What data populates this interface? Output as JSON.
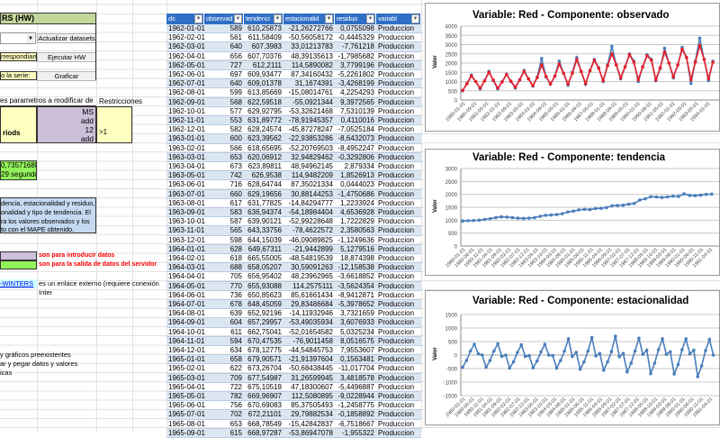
{
  "left_panel": {
    "header": "RS (HW)",
    "update_button": "Actualizar datasets",
    "cell_corresponding": "rrespondiant",
    "run_button": "Ejecutar HW",
    "cell_series": "o la serie:",
    "plot_button": "Graficar",
    "params_label": "es parametros a modificar de",
    "restrictions_label": "Restricciones",
    "param_name": "riods",
    "param_values": [
      "MS",
      "add",
      "12",
      "add"
    ],
    "restriction_value": ">1",
    "output_value": "0,735716886",
    "output_time": "29 segundos",
    "info_lines": [
      "dencia, estacionalidad y residuo,",
      "onalidad y tipo de tendencia. El",
      "ra los valores observados y los",
      "to con el MAPE obtenido."
    ],
    "legend_input": "son para introducir datos",
    "legend_output": "son para la salida de datos del servidor",
    "link_text": "-WINTERS",
    "link_note": "es un enlace externo (requiere conexión Inter",
    "notes": [
      "y gráficos preexistentes",
      "ar y pegar datos y valores",
      "icas"
    ],
    "colors": {
      "input": "#ccc0da",
      "output": "#92f25a",
      "info": "#c5d9f1",
      "header": "#c4d79b",
      "legend_text": "#ff0000"
    }
  },
  "table": {
    "columns": [
      "ds",
      "observad",
      "tendenci",
      "estacionalid",
      "residuo",
      "variabl"
    ],
    "rows": [
      [
        "1962-01-01",
        "589",
        "610,25873",
        "-21,26272766",
        "0,0755098",
        "Produccion"
      ],
      [
        "1962-02-01",
        "561",
        "611,58409",
        "-50,56058172",
        "-0,4445329",
        "Produccion"
      ],
      [
        "1962-03-01",
        "640",
        "607,3983",
        "33,01213783",
        "-7,761218",
        "Produccion"
      ],
      [
        "1962-04-01",
        "656",
        "607,70376",
        "48,39135613",
        "-1,7985682",
        "Produccion"
      ],
      [
        "1962-05-01",
        "727",
        "612,2111",
        "114,5890082",
        "3,7799196",
        "Produccion"
      ],
      [
        "1962-06-01",
        "697",
        "609,93477",
        "87,34160432",
        "-5,2261802",
        "Produccion"
      ],
      [
        "1962-07-01",
        "640",
        "609,01378",
        "31,1674391",
        "-3,4268199",
        "Produccion"
      ],
      [
        "1962-08-01",
        "599",
        "613,85669",
        "-15,08014761",
        "4,2254293",
        "Produccion"
      ],
      [
        "1962-09-01",
        "568",
        "622,59518",
        "-55,0921344",
        "9,3972565",
        "Produccion"
      ],
      [
        "1962-10-01",
        "577",
        "629,92795",
        "-53,32621468",
        "7,5310139",
        "Produccion"
      ],
      [
        "1962-11-01",
        "553",
        "631,89772",
        "-78,91945357",
        "0,4110016",
        "Produccion"
      ],
      [
        "1962-12-01",
        "582",
        "628,24574",
        "-45,87278247",
        "-7,0525184",
        "Produccion"
      ],
      [
        "1963-01-01",
        "600",
        "623,39562",
        "-22,93853286",
        "-8,6432073",
        "Produccion"
      ],
      [
        "1963-02-01",
        "566",
        "618,65695",
        "-52,20769503",
        "-8,4952247",
        "Produccion"
      ],
      [
        "1963-03-01",
        "653",
        "620,06912",
        "32,94829462",
        "-0,3292806",
        "Produccion"
      ],
      [
        "1963-04-01",
        "673",
        "623,89811",
        "48,94962145",
        "2,879334",
        "Produccion"
      ],
      [
        "1963-05-01",
        "742",
        "626,9538",
        "114,9482209",
        "1,8526913",
        "Produccion"
      ],
      [
        "1963-06-01",
        "716",
        "628,64744",
        "87,35021334",
        "0,0444023",
        "Produccion"
      ],
      [
        "1963-07-01",
        "660",
        "629,19656",
        "30,88144253",
        "-1,4750686",
        "Produccion"
      ],
      [
        "1963-08-01",
        "617",
        "631,77825",
        "-14,84294777",
        "1,2233924",
        "Produccion"
      ],
      [
        "1963-09-01",
        "583",
        "636,94374",
        "-54,18984404",
        "4,6536928",
        "Produccion"
      ],
      [
        "1963-10-01",
        "587",
        "639,90121",
        "-52,99228648",
        "1,7222829",
        "Produccion"
      ],
      [
        "1963-11-01",
        "565",
        "643,33756",
        "-78,4622572",
        "2,3580563",
        "Produccion"
      ],
      [
        "1963-12-01",
        "598",
        "644,15039",
        "-46,09089825",
        "-1,1249636",
        "Produccion"
      ],
      [
        "1964-01-01",
        "628",
        "649,67311",
        "-21,9442899",
        "5,1279516",
        "Produccion"
      ],
      [
        "1964-02-01",
        "618",
        "665,55005",
        "-48,54819539",
        "18,874398",
        "Produccion"
      ],
      [
        "1964-03-01",
        "688",
        "658,05207",
        "30,59091263",
        "-12,158538",
        "Produccion"
      ],
      [
        "1964-04-01",
        "705",
        "656,95402",
        "48,23962965",
        "-3,6618852",
        "Produccion"
      ],
      [
        "1964-05-01",
        "770",
        "655,93088",
        "114,2575111",
        "-3,5624354",
        "Produccion"
      ],
      [
        "1964-06-01",
        "736",
        "650,85623",
        "85,61661434",
        "-8,9412871",
        "Produccion"
      ],
      [
        "1964-07-01",
        "678",
        "648,45059",
        "29,83486684",
        "-5,3978652",
        "Produccion"
      ],
      [
        "1964-08-01",
        "639",
        "652,92196",
        "-14,11932946",
        "3,7321659",
        "Produccion"
      ],
      [
        "1964-09-01",
        "604",
        "657,29957",
        "-53,49035934",
        "3,6076933",
        "Produccion"
      ],
      [
        "1964-10-01",
        "611",
        "662,75041",
        "-52,01654582",
        "5,0325234",
        "Produccion"
      ],
      [
        "1964-11-01",
        "594",
        "670,47535",
        "-76,9011458",
        "8,0516575",
        "Produccion"
      ],
      [
        "1964-12-01",
        "634",
        "678,12775",
        "-44,54845753",
        "7,9553607",
        "Produccion"
      ],
      [
        "1965-01-01",
        "658",
        "679,90571",
        "-21,91397604",
        "0,1563481",
        "Produccion"
      ],
      [
        "1965-02-01",
        "622",
        "673,26704",
        "-50,68438445",
        "-11,017704",
        "Produccion"
      ],
      [
        "1965-03-01",
        "709",
        "677,54987",
        "31,26599945",
        "3,4818578",
        "Produccion"
      ],
      [
        "1965-04-01",
        "722",
        "675,10519",
        "47,18300607",
        "-5,4496887",
        "Produccion"
      ],
      [
        "1965-05-01",
        "782",
        "669,96907",
        "112,5080895",
        "-9,0228944",
        "Produccion"
      ],
      [
        "1965-06-01",
        "756",
        "670,69083",
        "85,37505493",
        "-1,2458775",
        "Produccion"
      ],
      [
        "1965-07-01",
        "702",
        "672,21101",
        "29,79882534",
        "-0,1858892",
        "Produccion"
      ],
      [
        "1965-08-01",
        "653",
        "668,78549",
        "-15,42842837",
        "-6,7518667",
        "Produccion"
      ],
      [
        "1965-09-01",
        "615",
        "668,97287",
        "-53,86947078",
        "-1,955322",
        "Produccion"
      ]
    ]
  },
  "chart_data": [
    {
      "type": "line",
      "title": "Variable: Red - Componente: observado",
      "ylabel": "Valor",
      "ylim": [
        0,
        4000
      ],
      "yticks": [
        0,
        500,
        1000,
        1500,
        2000,
        2500,
        3000,
        3500,
        4000
      ],
      "grid": true,
      "x_start": "1980-01-01",
      "x_step_months": 3,
      "xtick_labels": [
        "1980-01-01",
        "1980-09-01",
        "1981-05-01",
        "1982-01-01",
        "1982-09-01",
        "1983-05-01",
        "1984-01-01",
        "1984-09-01",
        "1985-05-01",
        "1986-01-01",
        "1986-09-01",
        "1987-05-01",
        "1988-01-01",
        "1988-09-01",
        "1989-05-01",
        "1990-01-01",
        "1990-09-01",
        "1991-05-01",
        "1992-01-01",
        "1992-09-01",
        "1993-05-01",
        "1994-01-01"
      ],
      "series": [
        {
          "color": "#4a7ebb",
          "values": [
            500,
            900,
            1350,
            1000,
            600,
            1050,
            1550,
            1050,
            600,
            1000,
            1400,
            1000,
            650,
            1100,
            1600,
            1150,
            750,
            1250,
            2250,
            1250,
            850,
            1300,
            2100,
            1450,
            800,
            1500,
            2300,
            1550,
            850,
            1600,
            2200,
            1750,
            1000,
            1900,
            2900,
            1900,
            1150,
            1800,
            2500,
            2100,
            1000,
            1800,
            2450,
            2200,
            1050,
            1700,
            2800,
            2000,
            1200,
            1900,
            2850,
            2300,
            900,
            2100,
            3350,
            2200,
            1050,
            2100
          ]
        },
        {
          "color": "#e8202a",
          "values": [
            520,
            880,
            1300,
            1000,
            650,
            1030,
            1500,
            1080,
            650,
            980,
            1380,
            1020,
            700,
            1080,
            1550,
            1150,
            780,
            1220,
            1900,
            1280,
            880,
            1280,
            1950,
            1450,
            870,
            1450,
            2200,
            1550,
            900,
            1580,
            2150,
            1720,
            1050,
            1850,
            2500,
            1900,
            1200,
            1800,
            2450,
            2050,
            1100,
            1780,
            2400,
            2150,
            1100,
            1750,
            2600,
            2000,
            1250,
            1900,
            2750,
            2300,
            1100,
            2050,
            2950,
            2200,
            1150,
            2050
          ]
        }
      ]
    },
    {
      "type": "line",
      "title": "Variable: Red - Componente: tendencia",
      "ylabel": "Valor",
      "ylim": [
        0,
        3000
      ],
      "yticks": [
        0,
        500,
        1000,
        1500,
        2000,
        2500,
        3000
      ],
      "grid": true,
      "x_start": "1980-01-01",
      "x_step_months": 3,
      "xtick_labels": [
        "1980-01-01",
        "1980-06-01",
        "1980-11-01",
        "1981-04-01",
        "1981-09-01",
        "1982-02-01",
        "1982-07-01",
        "1982-12-01",
        "1983-05-01",
        "1983-10-01",
        "1984-03-01",
        "1984-08-01",
        "1985-01-01",
        "1985-06-01",
        "1985-11-01",
        "1986-04-01",
        "1986-09-01",
        "1987-02-01",
        "1987-07-01",
        "1987-12-01",
        "1988-05-01",
        "1988-10-01",
        "1989-03-01",
        "1989-08-01",
        "1990-01-01",
        "1990-06-01",
        "1990-11-01",
        "1991-04-01"
      ],
      "series": [
        {
          "color": "#4a7ebb",
          "values": [
            970,
            980,
            990,
            1000,
            1030,
            1060,
            1100,
            1130,
            1120,
            1100,
            1080,
            1070,
            1080,
            1100,
            1150,
            1190,
            1200,
            1220,
            1250,
            1320,
            1350,
            1400,
            1420,
            1410,
            1450,
            1460,
            1490,
            1560,
            1570,
            1580,
            1620,
            1650,
            1780,
            1830,
            1910,
            1900,
            1880,
            1900,
            1930,
            1920,
            2020,
            1960,
            1950,
            1970,
            2000,
            2010
          ]
        }
      ]
    },
    {
      "type": "line",
      "title": "Variable: Red - Componente: estacionalidad",
      "ylabel": "Valor",
      "ylim": [
        -1500,
        1500
      ],
      "yticks": [
        -1500,
        -1000,
        -500,
        0,
        500,
        1000,
        1500
      ],
      "grid": true,
      "x_start": "1980-01-01",
      "x_step_months": 2,
      "xtick_labels": [
        "1980-01-01",
        "1980-06-01",
        "1980-11-01",
        "1981-04-01",
        "1981-09-01",
        "1982-02-01",
        "1982-07-01",
        "1982-12-01",
        "1983-05-01",
        "1983-10-01",
        "1984-03-01",
        "1984-08-01",
        "1985-01-01",
        "1985-06-01",
        "1985-11-01",
        "1986-04-01",
        "1986-09-01",
        "1987-02-01",
        "1987-07-01",
        "1987-12-01",
        "1988-05-01",
        "1988-10-01",
        "1989-03-01",
        "1989-08-01",
        "1990-01-01",
        "1990-06-01",
        "1990-11-01",
        "1991-04-01"
      ],
      "series": [
        {
          "color": "#4a7ebb",
          "values": [
            -450,
            -200,
            150,
            400,
            50,
            0,
            -450,
            -200,
            150,
            420,
            -50,
            0,
            -480,
            -250,
            100,
            380,
            -50,
            -20,
            -470,
            -220,
            120,
            400,
            0,
            -20,
            -480,
            -200,
            150,
            600,
            -50,
            100,
            -520,
            -250,
            150,
            650,
            -30,
            60,
            -560,
            -250,
            130,
            700,
            -60,
            60,
            -620,
            -300,
            150,
            620,
            30,
            180,
            -680,
            -300,
            200,
            600,
            30,
            120,
            -700,
            -350,
            200,
            600,
            50,
            180,
            -800,
            -400,
            170,
            580,
            0
          ]
        }
      ]
    }
  ]
}
